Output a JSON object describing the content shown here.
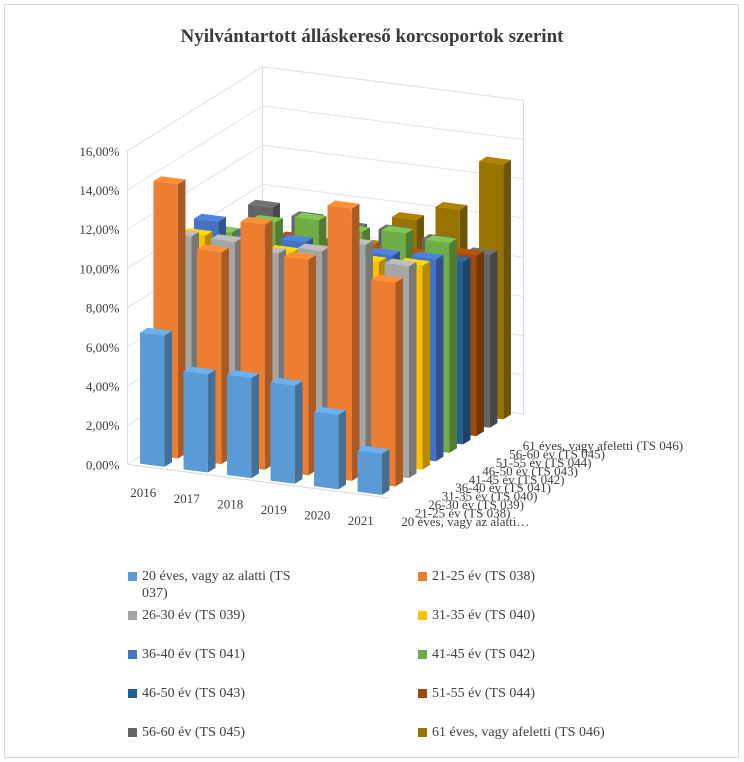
{
  "chart_data": {
    "type": "bar",
    "title": "Nyilvántartott álláskereső korcsoportok szerint",
    "categories": [
      "2016",
      "2017",
      "2018",
      "2019",
      "2020",
      "2021"
    ],
    "y_tick_labels": [
      "0,00%",
      "2,00%",
      "4,00%",
      "6,00%",
      "8,00%",
      "10,00%",
      "12,00%",
      "14,00%",
      "16,00%"
    ],
    "ylim": [
      0,
      16
    ],
    "depth_axis_labels": [
      "20 éves, vagy az alatti…",
      "21-25 év (TS 038)",
      "26-30 év (TS 039)",
      "31-35 év (TS 040)",
      "36-40 év (TS 041)",
      "41-45 év (TS 042)",
      "46-50 év (TS 043)",
      "51-55 év (TS 044)",
      "56-60 év (TS 045)",
      "61 éves, vagy afeletti (TS 046)"
    ],
    "legend_position": "bottom",
    "series": [
      {
        "name": "20 éves, vagy az alatti (TS 037)",
        "color": "#5b9bd5",
        "values": [
          6.7,
          5.0,
          5.1,
          5.0,
          3.8,
          2.1
        ]
      },
      {
        "name": "21-25 év (TS 038)",
        "color": "#ed7d31",
        "values": [
          14.0,
          10.8,
          12.5,
          11.0,
          13.9,
          10.4
        ]
      },
      {
        "name": "26-30 év (TS 039)",
        "color": "#a5a5a5",
        "values": [
          10.9,
          10.9,
          10.6,
          11.0,
          11.6,
          10.8
        ]
      },
      {
        "name": "31-35 év (TS 040)",
        "color": "#ffc000",
        "values": [
          10.5,
          10.3,
          10.2,
          10.5,
          10.3,
          10.4
        ]
      },
      {
        "name": "36-40 év (TS 041)",
        "color": "#4472c4",
        "values": [
          10.8,
          10.5,
          10.3,
          10.2,
          10.2,
          10.3
        ]
      },
      {
        "name": "41-45 év (TS 042)",
        "color": "#70ad47",
        "values": [
          9.8,
          10.6,
          11.0,
          10.7,
          10.9,
          10.7
        ]
      },
      {
        "name": "46-50 év (TS 043)",
        "color": "#255e91",
        "values": [
          9.2,
          9.2,
          9.1,
          9.1,
          9.1,
          9.3
        ]
      },
      {
        "name": "51-55 év (TS 044)",
        "color": "#9e480e",
        "values": [
          8.8,
          8.9,
          8.9,
          8.8,
          8.9,
          9.2
        ]
      },
      {
        "name": "56-60 év (TS 045)",
        "color": "#636363",
        "values": [
          9.8,
          9.5,
          9.3,
          9.4,
          9.2,
          8.8
        ]
      },
      {
        "name": "61 éves, vagy afeletti (TS 046)",
        "color": "#997300",
        "values": [
          7.0,
          7.4,
          8.0,
          9.6,
          10.4,
          13.0
        ]
      }
    ]
  }
}
